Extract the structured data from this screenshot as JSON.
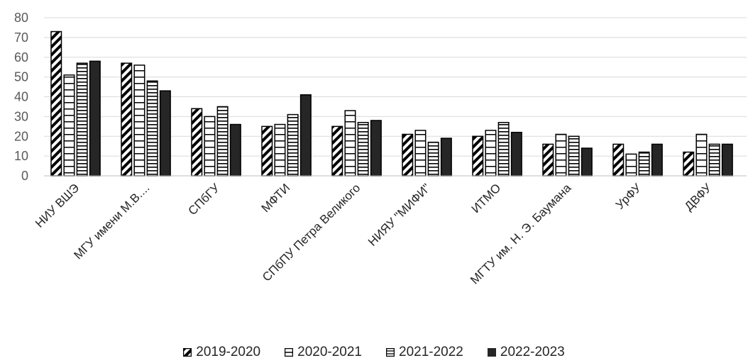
{
  "chart_data": {
    "type": "bar",
    "title": "",
    "xlabel": "",
    "ylabel": "",
    "ylim": [
      0,
      80
    ],
    "yticks": [
      0,
      10,
      20,
      30,
      40,
      50,
      60,
      70,
      80
    ],
    "grid": true,
    "legend_position": "bottom",
    "categories": [
      "НИУ ВШЭ",
      "МГУ имени М.В....",
      "СПбГУ",
      "МФТИ",
      "СПбПУ Петра Великого",
      "НИЯУ \"МИФИ\"",
      "ИТМО",
      "МГТУ им. Н. Э. Баумана",
      "УрФУ",
      "ДВФУ"
    ],
    "series": [
      {
        "name": "2019-2020",
        "pattern": "diagonal",
        "values": [
          73,
          57,
          34,
          25,
          25,
          21,
          20,
          16,
          16,
          12
        ]
      },
      {
        "name": "2020-2021",
        "pattern": "horizontal-wide",
        "values": [
          51,
          56,
          30,
          26,
          33,
          23,
          23,
          21,
          11,
          21
        ]
      },
      {
        "name": "2021-2022",
        "pattern": "horizontal-dense",
        "values": [
          57,
          48,
          35,
          31,
          27,
          17,
          27,
          20,
          12,
          16
        ]
      },
      {
        "name": "2022-2023",
        "pattern": "solid",
        "values": [
          58,
          43,
          26,
          41,
          28,
          19,
          22,
          14,
          16,
          16
        ]
      }
    ]
  },
  "colors": {
    "bar_stroke": "#000000",
    "solid_fill": "#262626",
    "grid": "#d9d9d9"
  }
}
